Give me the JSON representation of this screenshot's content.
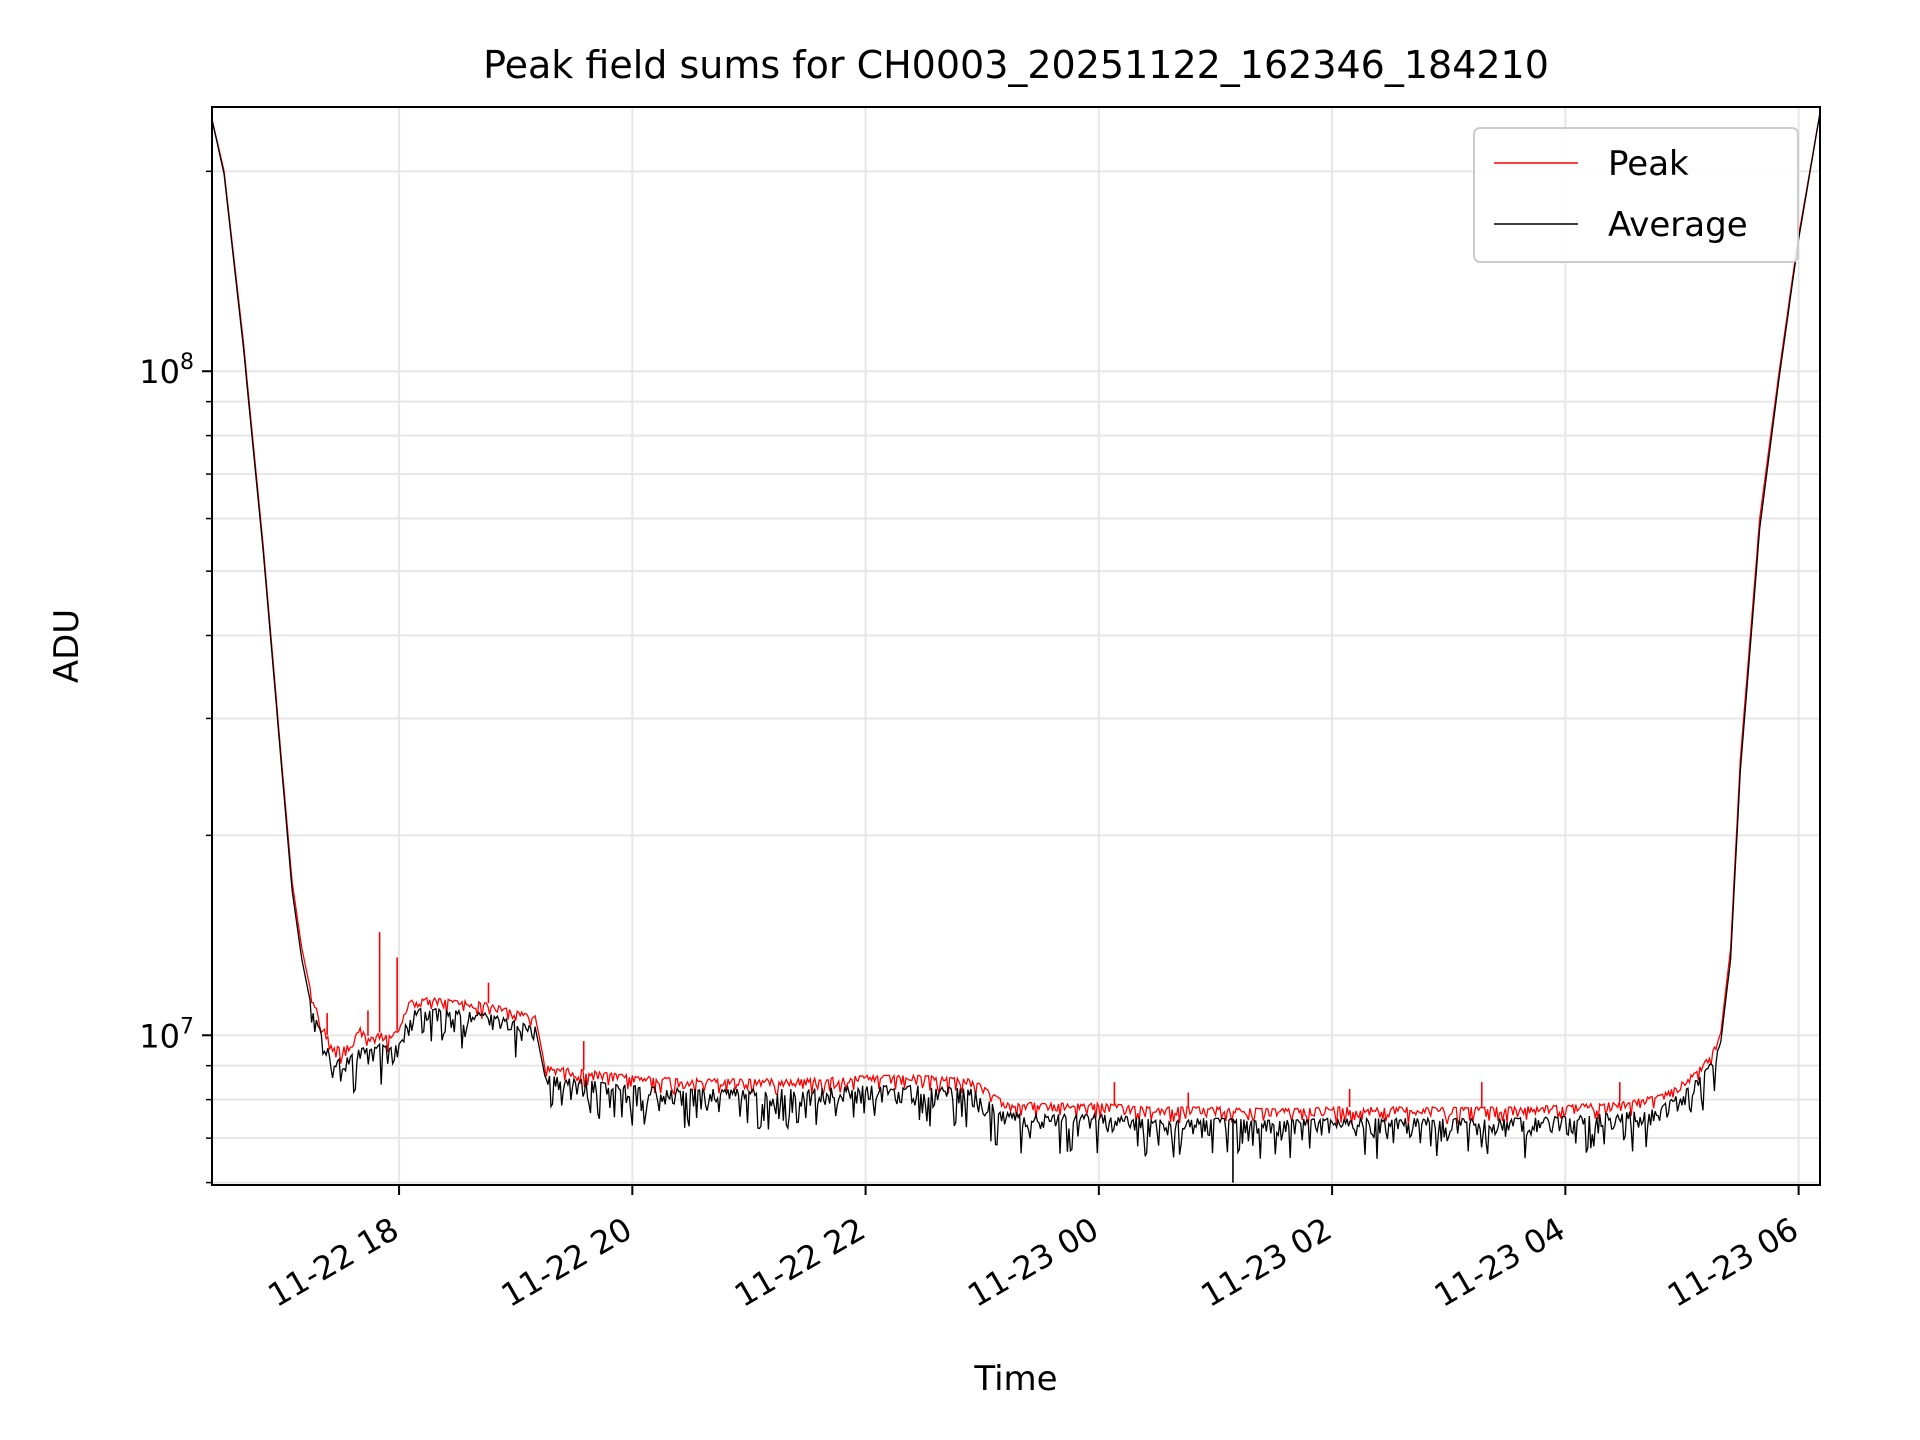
{
  "chart_data": {
    "type": "line",
    "title": "Peak field sums for CH0003_20251122_162346_184210",
    "xlabel": "Time",
    "ylabel": "ADU",
    "yscale": "log",
    "ylim": [
      5950000,
      250000000
    ],
    "xlim": [
      "2025-11-22T16:23:46",
      "2025-11-23T06:11:00"
    ],
    "x_ticks": [
      {
        "t": "2025-11-22T18:00",
        "label": "11-22 18"
      },
      {
        "t": "2025-11-22T20:00",
        "label": "11-22 20"
      },
      {
        "t": "2025-11-22T22:00",
        "label": "11-22 22"
      },
      {
        "t": "2025-11-23T00:00",
        "label": "11-23 00"
      },
      {
        "t": "2025-11-23T02:00",
        "label": "11-23 02"
      },
      {
        "t": "2025-11-23T04:00",
        "label": "11-23 04"
      },
      {
        "t": "2025-11-23T06:00",
        "label": "11-23 06"
      }
    ],
    "y_ticks_major": [
      {
        "value": 10000000,
        "base": "10",
        "exp": "7"
      },
      {
        "value": 100000000,
        "base": "10",
        "exp": "8"
      }
    ],
    "y_ticks_minor": [
      6000000,
      7000000,
      8000000,
      9000000,
      20000000,
      30000000,
      40000000,
      50000000,
      60000000,
      70000000,
      80000000,
      90000000,
      200000000
    ],
    "grid": true,
    "legend_position": "top-right",
    "series": [
      {
        "name": "Peak",
        "color": "#ff0000",
        "x": [
          "2025-11-22T16:23",
          "2025-11-22T16:30",
          "2025-11-22T16:40",
          "2025-11-22T16:50",
          "2025-11-22T17:00",
          "2025-11-22T17:05",
          "2025-11-22T17:10",
          "2025-11-22T17:15",
          "2025-11-22T17:20",
          "2025-11-22T17:25",
          "2025-11-22T17:30",
          "2025-11-22T17:35",
          "2025-11-22T17:40",
          "2025-11-22T17:45",
          "2025-11-22T17:50",
          "2025-11-22T17:55",
          "2025-11-22T18:00",
          "2025-11-22T18:05",
          "2025-11-22T18:15",
          "2025-11-22T18:30",
          "2025-11-22T18:45",
          "2025-11-22T19:00",
          "2025-11-22T19:10",
          "2025-11-22T19:15",
          "2025-11-22T19:30",
          "2025-11-22T20:00",
          "2025-11-22T20:30",
          "2025-11-22T21:00",
          "2025-11-22T21:30",
          "2025-11-22T22:00",
          "2025-11-22T22:30",
          "2025-11-22T22:55",
          "2025-11-22T23:10",
          "2025-11-22T23:30",
          "2025-11-23T00:00",
          "2025-11-23T00:30",
          "2025-11-23T01:00",
          "2025-11-23T01:30",
          "2025-11-23T02:00",
          "2025-11-23T02:30",
          "2025-11-23T03:00",
          "2025-11-23T03:30",
          "2025-11-23T04:00",
          "2025-11-23T04:30",
          "2025-11-23T04:50",
          "2025-11-23T05:00",
          "2025-11-23T05:10",
          "2025-11-23T05:15",
          "2025-11-23T05:20",
          "2025-11-23T05:25",
          "2025-11-23T05:30",
          "2025-11-23T05:40",
          "2025-11-23T05:50",
          "2025-11-23T06:00",
          "2025-11-23T06:11"
        ],
        "y": [
          245000000,
          200000000,
          110000000,
          55000000,
          25000000,
          17000000,
          13500000,
          11500000,
          10500000,
          9700000,
          9600000,
          9800000,
          10300000,
          9900000,
          10100000,
          10000000,
          10200000,
          11300000,
          11400000,
          11300000,
          11200000,
          10900000,
          10700000,
          9000000,
          8900000,
          8700000,
          8600000,
          8600000,
          8600000,
          8700000,
          8700000,
          8600000,
          8000000,
          7900000,
          7900000,
          7800000,
          7800000,
          7750000,
          7800000,
          7800000,
          7800000,
          7800000,
          7850000,
          7950000,
          8150000,
          8500000,
          9000000,
          9400000,
          10100000,
          13500000,
          26000000,
          60000000,
          100000000,
          160000000,
          245000000
        ]
      },
      {
        "name": "Average",
        "color": "#000000",
        "x": [
          "2025-11-22T16:23",
          "2025-11-22T16:30",
          "2025-11-22T16:40",
          "2025-11-22T16:50",
          "2025-11-22T17:00",
          "2025-11-22T17:05",
          "2025-11-22T17:10",
          "2025-11-22T17:15",
          "2025-11-22T17:20",
          "2025-11-22T17:25",
          "2025-11-22T17:30",
          "2025-11-22T17:35",
          "2025-11-22T17:40",
          "2025-11-22T17:45",
          "2025-11-22T17:50",
          "2025-11-22T17:55",
          "2025-11-22T18:00",
          "2025-11-22T18:05",
          "2025-11-22T18:15",
          "2025-11-22T18:30",
          "2025-11-22T18:45",
          "2025-11-22T19:00",
          "2025-11-22T19:10",
          "2025-11-22T19:15",
          "2025-11-22T19:30",
          "2025-11-22T20:00",
          "2025-11-22T20:30",
          "2025-11-22T21:00",
          "2025-11-22T21:30",
          "2025-11-22T22:00",
          "2025-11-22T22:30",
          "2025-11-22T22:55",
          "2025-11-22T23:10",
          "2025-11-22T23:30",
          "2025-11-23T00:00",
          "2025-11-23T00:30",
          "2025-11-23T01:00",
          "2025-11-23T01:30",
          "2025-11-23T02:00",
          "2025-11-23T02:30",
          "2025-11-23T03:00",
          "2025-11-23T03:30",
          "2025-11-23T04:00",
          "2025-11-23T04:30",
          "2025-11-23T04:50",
          "2025-11-23T05:00",
          "2025-11-23T05:10",
          "2025-11-23T05:15",
          "2025-11-23T05:20",
          "2025-11-23T05:25",
          "2025-11-23T05:30",
          "2025-11-23T05:40",
          "2025-11-23T05:50",
          "2025-11-23T06:00",
          "2025-11-23T06:11"
        ],
        "y": [
          245000000,
          198000000,
          108000000,
          54000000,
          24500000,
          16500000,
          13000000,
          11000000,
          10100000,
          9300000,
          9200000,
          9300000,
          9700000,
          9500000,
          9700000,
          9600000,
          9700000,
          10900000,
          11000000,
          10900000,
          10800000,
          10500000,
          10300000,
          8700000,
          8600000,
          8400000,
          8300000,
          8300000,
          8300000,
          8400000,
          8400000,
          8300000,
          7700000,
          7600000,
          7600000,
          7500000,
          7500000,
          7450000,
          7500000,
          7500000,
          7500000,
          7500000,
          7550000,
          7650000,
          7850000,
          8200000,
          8700000,
          9100000,
          9800000,
          13000000,
          25000000,
          58000000,
          98000000,
          158000000,
          245000000
        ]
      }
    ],
    "spikes": [
      {
        "series": "Peak",
        "x": "2025-11-22T17:23",
        "y": 10800000
      },
      {
        "series": "Peak",
        "x": "2025-11-22T17:44",
        "y": 10900000
      },
      {
        "series": "Peak",
        "x": "2025-11-22T17:50",
        "y": 14300000
      },
      {
        "series": "Peak",
        "x": "2025-11-22T17:59",
        "y": 13100000
      },
      {
        "series": "Peak",
        "x": "2025-11-22T18:46",
        "y": 12000000
      },
      {
        "series": "Peak",
        "x": "2025-11-22T19:35",
        "y": 9800000
      },
      {
        "series": "Peak",
        "x": "2025-11-23T00:08",
        "y": 8500000
      },
      {
        "series": "Peak",
        "x": "2025-11-23T00:46",
        "y": 8200000
      },
      {
        "series": "Peak",
        "x": "2025-11-23T02:09",
        "y": 8300000
      },
      {
        "series": "Peak",
        "x": "2025-11-23T03:17",
        "y": 8500000
      },
      {
        "series": "Peak",
        "x": "2025-11-23T04:28",
        "y": 8500000
      },
      {
        "series": "Average",
        "x": "2025-11-23T01:09",
        "y": 6000000
      }
    ]
  }
}
